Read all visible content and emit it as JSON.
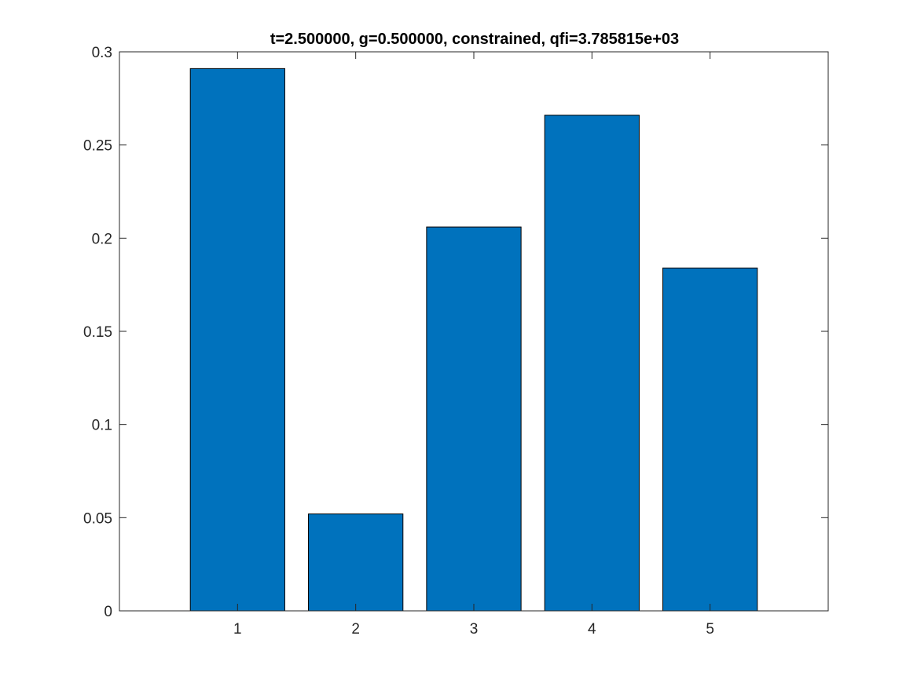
{
  "chart_data": {
    "type": "bar",
    "title": "t=2.500000, g=0.500000, constrained, qfi=3.785815e+03",
    "xlabel": "",
    "ylabel": "",
    "categories": [
      "1",
      "2",
      "3",
      "4",
      "5"
    ],
    "values": [
      0.291,
      0.052,
      0.206,
      0.266,
      0.184
    ],
    "xlim": [
      0,
      6
    ],
    "ylim": [
      0,
      0.3
    ],
    "yticks": [
      0,
      0.05,
      0.1,
      0.15,
      0.2,
      0.25,
      0.3
    ],
    "ytick_labels": [
      "0",
      "0.05",
      "0.1",
      "0.15",
      "0.2",
      "0.25",
      "0.3"
    ],
    "xticks": [
      1,
      2,
      3,
      4,
      5
    ],
    "xtick_labels": [
      "1",
      "2",
      "3",
      "4",
      "5"
    ],
    "grid": false,
    "legend": "none",
    "bar_color": "#0072BD",
    "edge_color": "#000000"
  }
}
